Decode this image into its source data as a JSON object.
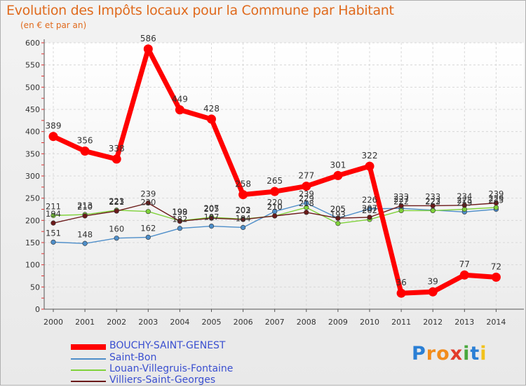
{
  "title": "Evolution des Impôts locaux pour la Commune par Habitant",
  "subtitle": "(en € et par an)",
  "logo": {
    "text": "Proxiti",
    "letters": [
      "P",
      "r",
      "o",
      "x",
      "i",
      "t",
      "i"
    ],
    "colors": [
      "#2a7fd5",
      "#f28c1c",
      "#f28c1c",
      "#e23b2b",
      "#4aa83e",
      "#2a7fd5",
      "#f2c21c"
    ]
  },
  "chart_data": {
    "type": "line",
    "x": [
      2000,
      2001,
      2002,
      2003,
      2004,
      2005,
      2006,
      2007,
      2008,
      2009,
      2010,
      2011,
      2012,
      2013,
      2014
    ],
    "ylim": [
      0,
      600
    ],
    "yticks": [
      0,
      50,
      100,
      150,
      200,
      250,
      300,
      350,
      400,
      450,
      500,
      550,
      600
    ],
    "grid": true,
    "legend_position": "bottom-left",
    "series": [
      {
        "name": "BOUCHY-SAINT-GENEST",
        "color": "#ff0000",
        "values": [
          389,
          356,
          338,
          586,
          449,
          428,
          258,
          265,
          277,
          301,
          322,
          36,
          39,
          77,
          72
        ]
      },
      {
        "name": "Saint-Bon",
        "color": "#4e8ec9",
        "values": [
          151,
          148,
          160,
          162,
          182,
          187,
          184,
          220,
          239,
          205,
          226,
          227,
          223,
          219,
          225
        ]
      },
      {
        "name": "Louan-Villegruis-Fontaine",
        "color": "#7fd23a",
        "values": [
          211,
          213,
          223,
          220,
          199,
          207,
          203,
          210,
          229,
          193,
          202,
          222,
          222,
          225,
          229
        ]
      },
      {
        "name": "Villiers-Saint-Georges",
        "color": "#6b1a1a",
        "values": [
          194,
          210,
          221,
          239,
          198,
          205,
          202,
          210,
          218,
          205,
          207,
          233,
          233,
          234,
          239
        ]
      }
    ]
  }
}
